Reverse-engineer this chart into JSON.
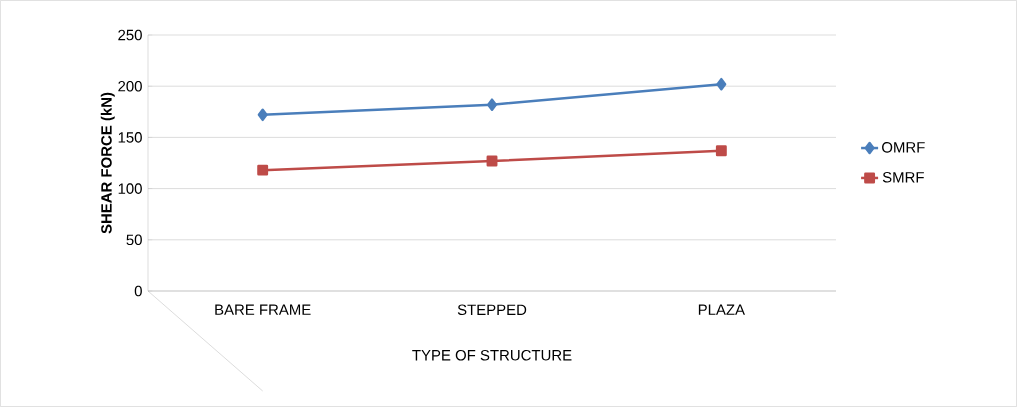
{
  "chart_data": {
    "type": "line",
    "xlabel": "TYPE OF STRUCTURE",
    "ylabel": "SHEAR FORCE (kN)",
    "categories": [
      "BARE FRAME",
      "STEPPED",
      "PLAZA"
    ],
    "series": [
      {
        "name": "OMRF",
        "color": "#4a7ebb",
        "marker": "diamond",
        "values": [
          172,
          182,
          202
        ]
      },
      {
        "name": "SMRF",
        "color": "#be4b48",
        "marker": "square",
        "values": [
          118,
          127,
          137
        ]
      }
    ],
    "ylim": [
      0,
      250
    ],
    "yticks": [
      0,
      50,
      100,
      150,
      200,
      250
    ],
    "grid": "y",
    "legend": "right",
    "line_style": "solid"
  }
}
